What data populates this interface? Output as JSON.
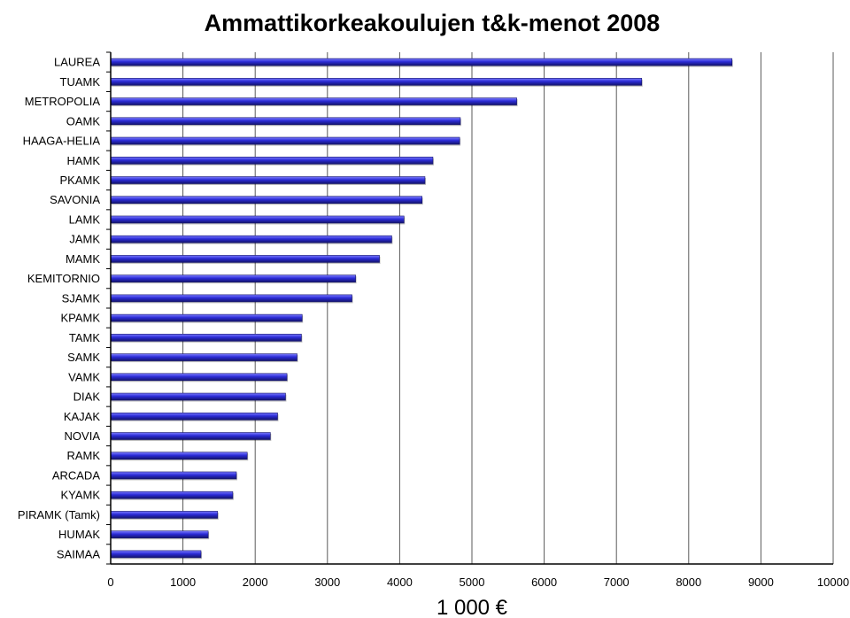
{
  "chart_data": {
    "type": "bar",
    "orientation": "horizontal",
    "title": "Ammattikorkeakoulujen t&k-menot  2008",
    "xlabel": "1 000 €",
    "ylabel": "",
    "categories": [
      "LAUREA",
      "TUAMK",
      "METROPOLIA",
      "OAMK",
      "HAAGA-HELIA",
      "HAMK",
      "PKAMK",
      "SAVONIA",
      "LAMK",
      "JAMK",
      "MAMK",
      "KEMITORNIO",
      "SJAMK",
      "KPAMK",
      "TAMK",
      "SAMK",
      "VAMK",
      "DIAK",
      "KAJAK",
      "NOVIA",
      "RAMK",
      "ARCADA",
      "KYAMK",
      "PIRAMK (Tamk)",
      "HUMAK",
      "SAIMAA"
    ],
    "values": [
      8600,
      7350,
      5620,
      4840,
      4830,
      4460,
      4350,
      4310,
      4060,
      3890,
      3720,
      3390,
      3340,
      2650,
      2640,
      2580,
      2440,
      2420,
      2310,
      2210,
      1890,
      1740,
      1690,
      1480,
      1350,
      1250
    ],
    "xlim": [
      0,
      10000
    ],
    "xticks": [
      "0",
      "1000",
      "2000",
      "3000",
      "4000",
      "5000",
      "6000",
      "7000",
      "8000",
      "9000",
      "10000"
    ],
    "grid": true,
    "legend": "none",
    "colors": {
      "bar_fill": "#2b2bd6",
      "bar_light": "#7d7dff",
      "bar_dark": "#14146b",
      "grid": "#5a5a5a",
      "axis": "#000000"
    }
  }
}
